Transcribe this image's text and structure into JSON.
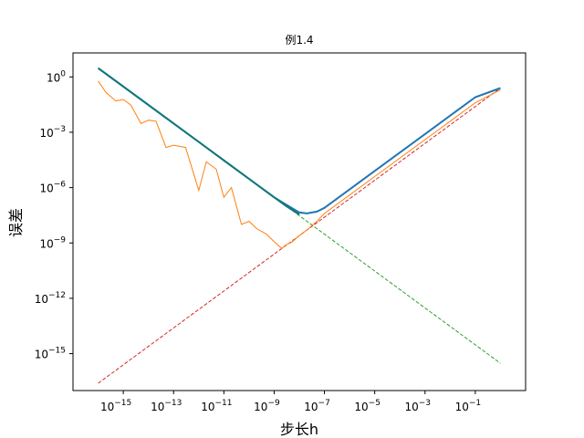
{
  "chart_data": {
    "type": "line",
    "title": "例1.4",
    "xlabel": "步长h",
    "ylabel": "误差",
    "xscale": "log",
    "yscale": "log",
    "xlim": [
      1e-17,
      10
    ],
    "ylim": [
      1e-17,
      20
    ],
    "xticks": {
      "values": [
        1e-15,
        1e-13,
        1e-11,
        1e-09,
        1e-07,
        1e-05,
        0.001,
        0.1
      ],
      "base": [
        "10",
        "10",
        "10",
        "10",
        "10",
        "10",
        "10",
        "10"
      ],
      "exponent": [
        "−15",
        "−13",
        "−11",
        "−9",
        "−7",
        "−5",
        "−3",
        "−1"
      ]
    },
    "yticks": {
      "values": [
        1,
        0.001,
        1e-06,
        1e-09,
        1e-12,
        1e-15
      ],
      "base": [
        "10",
        "10",
        "10",
        "10",
        "10",
        "10"
      ],
      "exponent": [
        "0",
        "−3",
        "−6",
        "−9",
        "−12",
        "−15"
      ]
    },
    "grid": false,
    "series": [
      {
        "color": "#d62728",
        "style": "dashed",
        "x": [
          1e-16,
          1
        ],
        "y": [
          2.5e-17,
          0.25
        ]
      },
      {
        "color": "#2ca02c",
        "style": "dashed",
        "x": [
          1e-16,
          1
        ],
        "y": [
          3.0,
          3e-16
        ]
      },
      {
        "color": "#1f77b4",
        "style": "solid",
        "x": [
          1e-16,
          1e-14,
          1e-12,
          1e-10,
          1e-09,
          3e-09,
          1e-08,
          2e-08,
          5e-08,
          1e-07,
          1e-05,
          0.001,
          0.1,
          1
        ],
        "y": [
          3.0,
          0.03,
          0.0003,
          3e-06,
          3e-07,
          1.2e-07,
          4.5e-08,
          4e-08,
          5e-08,
          8e-08,
          8e-06,
          0.0008,
          0.08,
          0.25
        ]
      },
      {
        "color": "#ff7f0e",
        "style": "solid",
        "x": [
          1e-16,
          2e-16,
          5e-16,
          1e-15,
          2e-15,
          5e-15,
          1e-14,
          2e-14,
          5e-14,
          1e-13,
          3e-13,
          1e-12,
          2e-12,
          5e-12,
          1e-11,
          2e-11,
          5e-11,
          1e-10,
          2e-10,
          5e-10,
          1e-09,
          2e-09,
          3e-09,
          5e-09,
          1e-08,
          2e-08,
          5e-08,
          1e-07,
          1e-05,
          0.001,
          0.1,
          1
        ],
        "y": [
          0.6,
          0.15,
          0.05,
          0.06,
          0.03,
          0.003,
          0.0045,
          0.004,
          0.00015,
          0.0002,
          0.00015,
          7e-07,
          2.5e-05,
          1e-05,
          3e-07,
          1e-06,
          1e-08,
          1.5e-08,
          6e-09,
          3e-09,
          1.2e-09,
          5e-10,
          8e-10,
          1.1e-09,
          2.5e-09,
          5e-09,
          1.5e-08,
          4e-08,
          4e-06,
          0.0004,
          0.04,
          0.2
        ]
      },
      {
        "color": "#117777",
        "style": "solid",
        "x": [
          1e-16,
          1e-14,
          1e-12,
          1e-10,
          1e-09,
          3e-09,
          1e-08
        ],
        "y": [
          3.0,
          0.03,
          0.0003,
          3e-06,
          3e-07,
          1e-07,
          3.5e-08
        ]
      }
    ]
  }
}
